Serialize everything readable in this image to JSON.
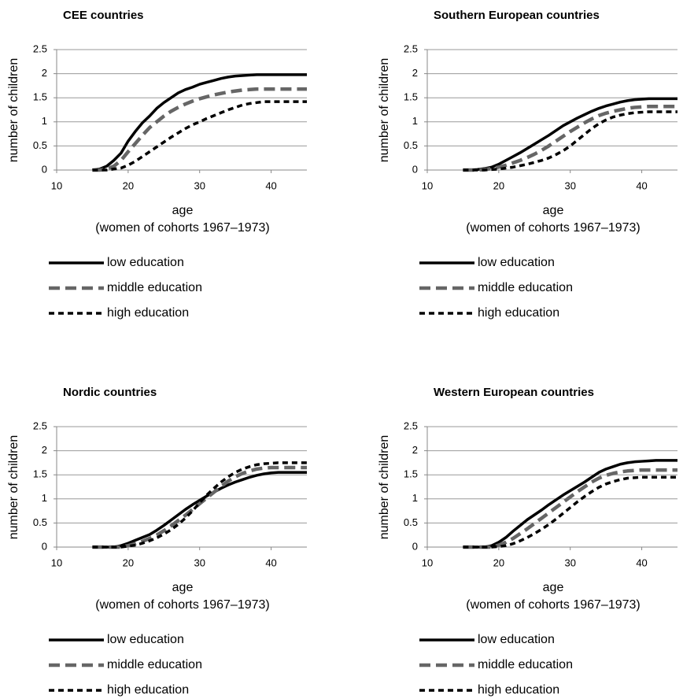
{
  "chart_data": [
    {
      "type": "line",
      "title": "CEE countries",
      "x_label": "age",
      "x_sublabel": "(women of cohorts 1967–1973)",
      "y_label": "number of children",
      "x": [
        15,
        16,
        17,
        18,
        19,
        20,
        21,
        22,
        23,
        24,
        25,
        26,
        27,
        28,
        29,
        30,
        31,
        32,
        33,
        34,
        35,
        36,
        37,
        38,
        39,
        40,
        41,
        42,
        43,
        44,
        45
      ],
      "xlim": [
        10,
        45
      ],
      "xticks": [
        10,
        20,
        30,
        40
      ],
      "ylim": [
        0,
        2.5
      ],
      "yticks": [
        0,
        0.5,
        1,
        1.5,
        2,
        2.5
      ],
      "grid": true,
      "series": [
        {
          "name": "low education",
          "color": "#000000",
          "style": "solid",
          "values": [
            0,
            0.02,
            0.08,
            0.2,
            0.35,
            0.6,
            0.8,
            0.98,
            1.12,
            1.28,
            1.4,
            1.5,
            1.6,
            1.67,
            1.72,
            1.78,
            1.82,
            1.86,
            1.9,
            1.93,
            1.95,
            1.96,
            1.97,
            1.98,
            1.98,
            1.98,
            1.98,
            1.98,
            1.98,
            1.98,
            1.98
          ]
        },
        {
          "name": "middle education",
          "color": "#666666",
          "style": "long-dash",
          "values": [
            0,
            0,
            0.02,
            0.08,
            0.2,
            0.38,
            0.55,
            0.72,
            0.88,
            1.0,
            1.12,
            1.22,
            1.3,
            1.37,
            1.43,
            1.48,
            1.52,
            1.56,
            1.59,
            1.62,
            1.64,
            1.66,
            1.67,
            1.68,
            1.68,
            1.68,
            1.68,
            1.68,
            1.68,
            1.68,
            1.68
          ]
        },
        {
          "name": "high education",
          "color": "#000000",
          "style": "short-dash",
          "values": [
            0,
            0,
            0,
            0.02,
            0.04,
            0.1,
            0.18,
            0.28,
            0.38,
            0.48,
            0.58,
            0.68,
            0.77,
            0.86,
            0.94,
            1.0,
            1.07,
            1.13,
            1.19,
            1.25,
            1.3,
            1.35,
            1.38,
            1.4,
            1.42,
            1.42,
            1.42,
            1.42,
            1.42,
            1.42,
            1.42
          ]
        }
      ]
    },
    {
      "type": "line",
      "title": "Southern European countries",
      "x_label": "age",
      "x_sublabel": "(women of cohorts 1967–1973)",
      "y_label": "number of children",
      "x": [
        15,
        16,
        17,
        18,
        19,
        20,
        21,
        22,
        23,
        24,
        25,
        26,
        27,
        28,
        29,
        30,
        31,
        32,
        33,
        34,
        35,
        36,
        37,
        38,
        39,
        40,
        41,
        42,
        43,
        44,
        45
      ],
      "xlim": [
        10,
        45
      ],
      "xticks": [
        10,
        20,
        30,
        40
      ],
      "ylim": [
        0,
        2.5
      ],
      "yticks": [
        0,
        0.5,
        1,
        1.5,
        2,
        2.5
      ],
      "grid": true,
      "series": [
        {
          "name": "low education",
          "color": "#000000",
          "style": "solid",
          "values": [
            0,
            0,
            0.01,
            0.03,
            0.06,
            0.12,
            0.2,
            0.28,
            0.36,
            0.45,
            0.54,
            0.63,
            0.72,
            0.82,
            0.92,
            1.0,
            1.08,
            1.15,
            1.22,
            1.28,
            1.33,
            1.37,
            1.41,
            1.44,
            1.46,
            1.47,
            1.48,
            1.48,
            1.48,
            1.48,
            1.48
          ]
        },
        {
          "name": "middle education",
          "color": "#666666",
          "style": "long-dash",
          "values": [
            0,
            0,
            0,
            0.01,
            0.03,
            0.06,
            0.1,
            0.15,
            0.2,
            0.26,
            0.33,
            0.41,
            0.5,
            0.6,
            0.7,
            0.8,
            0.89,
            0.98,
            1.06,
            1.13,
            1.18,
            1.22,
            1.25,
            1.28,
            1.3,
            1.31,
            1.32,
            1.32,
            1.32,
            1.32,
            1.32
          ]
        },
        {
          "name": "high education",
          "color": "#000000",
          "style": "short-dash",
          "values": [
            0,
            0,
            0,
            0,
            0.01,
            0.02,
            0.04,
            0.06,
            0.09,
            0.12,
            0.16,
            0.2,
            0.25,
            0.32,
            0.4,
            0.5,
            0.62,
            0.74,
            0.86,
            0.96,
            1.04,
            1.1,
            1.14,
            1.17,
            1.19,
            1.2,
            1.21,
            1.21,
            1.21,
            1.21,
            1.21
          ]
        }
      ]
    },
    {
      "type": "line",
      "title": "Nordic countries",
      "x_label": "age",
      "x_sublabel": "(women of cohorts 1967–1973)",
      "y_label": "number of children",
      "x": [
        15,
        16,
        17,
        18,
        19,
        20,
        21,
        22,
        23,
        24,
        25,
        26,
        27,
        28,
        29,
        30,
        31,
        32,
        33,
        34,
        35,
        36,
        37,
        38,
        39,
        40,
        41,
        42,
        43,
        44,
        45
      ],
      "xlim": [
        10,
        45
      ],
      "xticks": [
        10,
        20,
        30,
        40
      ],
      "ylim": [
        0,
        2.5
      ],
      "yticks": [
        0,
        0.5,
        1,
        1.5,
        2,
        2.5
      ],
      "grid": true,
      "series": [
        {
          "name": "low education",
          "color": "#000000",
          "style": "solid",
          "values": [
            0,
            0,
            0,
            0,
            0.03,
            0.08,
            0.14,
            0.2,
            0.26,
            0.35,
            0.45,
            0.56,
            0.67,
            0.78,
            0.88,
            0.97,
            1.06,
            1.14,
            1.22,
            1.29,
            1.35,
            1.4,
            1.45,
            1.49,
            1.52,
            1.54,
            1.55,
            1.55,
            1.55,
            1.55,
            1.55
          ]
        },
        {
          "name": "middle education",
          "color": "#666666",
          "style": "long-dash",
          "values": [
            0,
            0,
            0,
            0,
            0,
            0.03,
            0.07,
            0.12,
            0.18,
            0.25,
            0.34,
            0.44,
            0.55,
            0.66,
            0.78,
            0.9,
            1.02,
            1.14,
            1.26,
            1.37,
            1.46,
            1.53,
            1.58,
            1.62,
            1.64,
            1.65,
            1.65,
            1.65,
            1.65,
            1.65,
            1.65
          ]
        },
        {
          "name": "high education",
          "color": "#000000",
          "style": "short-dash",
          "values": [
            0,
            0,
            0,
            0,
            0,
            0.02,
            0.04,
            0.08,
            0.13,
            0.19,
            0.27,
            0.36,
            0.47,
            0.6,
            0.75,
            0.92,
            1.08,
            1.22,
            1.35,
            1.46,
            1.55,
            1.62,
            1.67,
            1.71,
            1.73,
            1.74,
            1.75,
            1.75,
            1.75,
            1.75,
            1.75
          ]
        }
      ]
    },
    {
      "type": "line",
      "title": "Western European countries",
      "x_label": "age",
      "x_sublabel": "(women of cohorts 1967–1973)",
      "y_label": "number of children",
      "x": [
        15,
        16,
        17,
        18,
        19,
        20,
        21,
        22,
        23,
        24,
        25,
        26,
        27,
        28,
        29,
        30,
        31,
        32,
        33,
        34,
        35,
        36,
        37,
        38,
        39,
        40,
        41,
        42,
        43,
        44,
        45
      ],
      "xlim": [
        10,
        45
      ],
      "xticks": [
        10,
        20,
        30,
        40
      ],
      "ylim": [
        0,
        2.5
      ],
      "yticks": [
        0,
        0.5,
        1,
        1.5,
        2,
        2.5
      ],
      "grid": true,
      "series": [
        {
          "name": "low education",
          "color": "#000000",
          "style": "solid",
          "values": [
            0,
            0,
            0,
            0,
            0.03,
            0.1,
            0.2,
            0.33,
            0.45,
            0.57,
            0.67,
            0.77,
            0.88,
            0.98,
            1.08,
            1.17,
            1.26,
            1.35,
            1.45,
            1.55,
            1.62,
            1.67,
            1.72,
            1.75,
            1.77,
            1.78,
            1.79,
            1.8,
            1.8,
            1.8,
            1.8
          ]
        },
        {
          "name": "middle education",
          "color": "#666666",
          "style": "long-dash",
          "values": [
            0,
            0,
            0,
            0,
            0,
            0.04,
            0.1,
            0.18,
            0.28,
            0.38,
            0.49,
            0.6,
            0.71,
            0.82,
            0.93,
            1.04,
            1.15,
            1.25,
            1.35,
            1.43,
            1.49,
            1.53,
            1.56,
            1.58,
            1.59,
            1.6,
            1.6,
            1.6,
            1.6,
            1.6,
            1.6
          ]
        },
        {
          "name": "high education",
          "color": "#000000",
          "style": "short-dash",
          "values": [
            0,
            0,
            0,
            0,
            0,
            0.01,
            0.03,
            0.07,
            0.13,
            0.2,
            0.28,
            0.37,
            0.47,
            0.58,
            0.7,
            0.82,
            0.94,
            1.05,
            1.15,
            1.24,
            1.31,
            1.36,
            1.4,
            1.43,
            1.44,
            1.45,
            1.45,
            1.45,
            1.45,
            1.45,
            1.45
          ]
        }
      ]
    }
  ]
}
